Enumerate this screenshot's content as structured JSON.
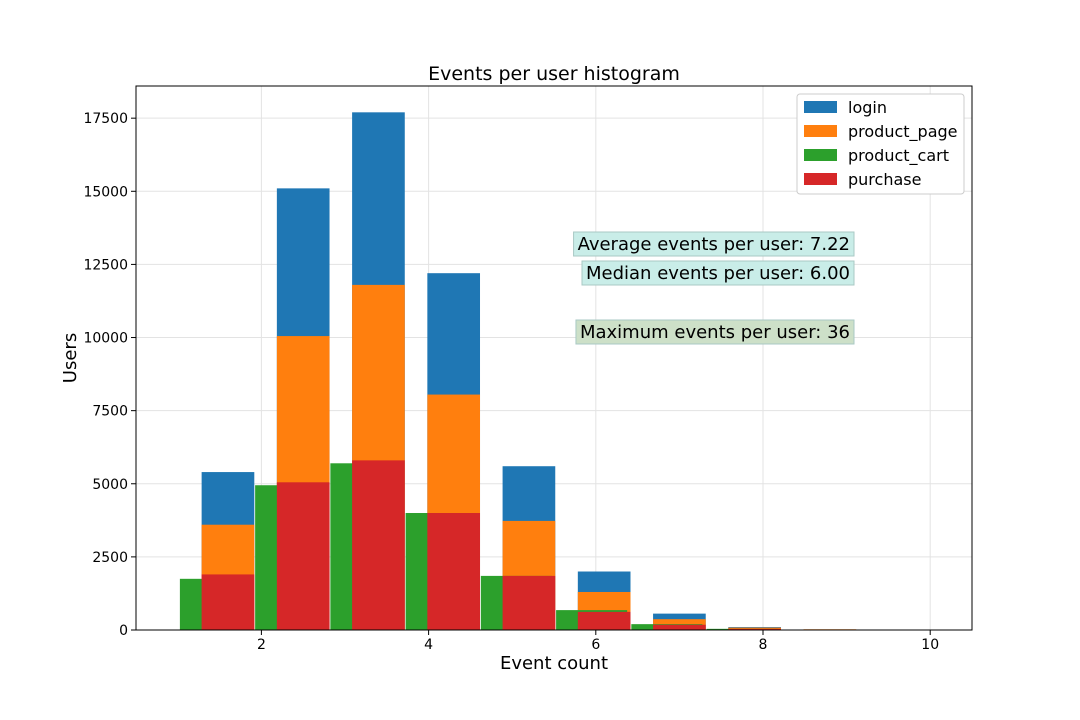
{
  "chart_data": {
    "type": "bar",
    "title": "Events per user histogram",
    "xlabel": "Event count",
    "ylabel": "Users",
    "xlim": [
      0.5,
      10.5
    ],
    "ylim": [
      0,
      18600
    ],
    "xticks": [
      2,
      4,
      6,
      8,
      10
    ],
    "yticks": [
      0,
      2500,
      5000,
      7500,
      10000,
      12500,
      15000,
      17500
    ],
    "grid": true,
    "legend_position": "top-right",
    "series": [
      {
        "name": "login",
        "color": "#1f77b4",
        "x": [
          1.6,
          2.5,
          3.4,
          4.3,
          5.2,
          6.1,
          7.0,
          7.9,
          8.8
        ],
        "values": [
          5400,
          15100,
          17700,
          12200,
          5600,
          2000,
          560,
          100,
          10
        ]
      },
      {
        "name": "product_page",
        "color": "#ff7f0e",
        "x": [
          1.6,
          2.5,
          3.4,
          4.3,
          5.2,
          6.1,
          7.0,
          7.9,
          8.8
        ],
        "values": [
          3600,
          10050,
          11800,
          8050,
          3730,
          1300,
          370,
          80,
          25
        ]
      },
      {
        "name": "product_cart",
        "color": "#2ca02c",
        "x": [
          1.45,
          2.35,
          3.25,
          4.15,
          5.05,
          5.95,
          6.85,
          7.75,
          8.65
        ],
        "values": [
          1750,
          4950,
          5700,
          4000,
          1850,
          680,
          200,
          40,
          5
        ]
      },
      {
        "name": "purchase",
        "color": "#d62728",
        "x": [
          1.6,
          2.5,
          3.4,
          4.3,
          5.2,
          6.1,
          7.0,
          7.9,
          8.8
        ],
        "values": [
          1900,
          5050,
          5800,
          4000,
          1850,
          620,
          180,
          40,
          5
        ]
      }
    ],
    "annotations": [
      {
        "text": "Average events per user: 7.22",
        "bg": "#c9ede8"
      },
      {
        "text": "Median events per user: 6.00",
        "bg": "#c9ede8"
      },
      {
        "text": "Maximum events per user: 36",
        "bg": "#cde0c8"
      }
    ]
  }
}
